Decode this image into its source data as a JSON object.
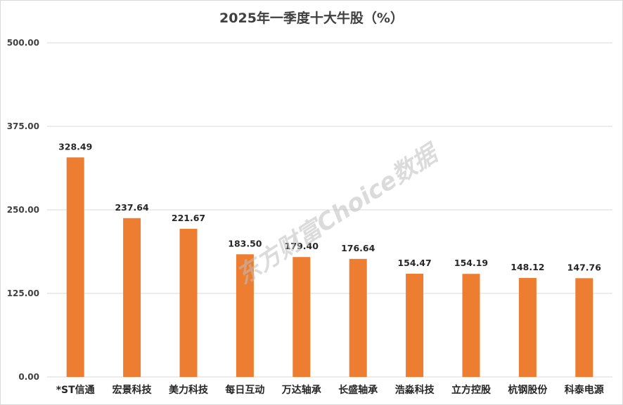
{
  "chart_data": {
    "type": "bar",
    "title": "2025年一季度十大牛股（%）",
    "categories": [
      "*ST信通",
      "宏景科技",
      "美力科技",
      "每日互动",
      "万达轴承",
      "长盛轴承",
      "浩淼科技",
      "立方控股",
      "杭钢股份",
      "科泰电源"
    ],
    "values": [
      328.49,
      237.64,
      221.67,
      183.5,
      179.4,
      176.64,
      154.47,
      154.19,
      148.12,
      147.76
    ],
    "value_labels": [
      "328.49",
      "237.64",
      "221.67",
      "183.50",
      "179.40",
      "176.64",
      "154.47",
      "154.19",
      "148.12",
      "147.76"
    ],
    "ylim": [
      0,
      500
    ],
    "yticks": [
      0,
      125,
      250,
      375,
      500
    ],
    "ytick_labels": [
      "0.00",
      "125.00",
      "250.00",
      "375.00",
      "500.00"
    ],
    "grid": true,
    "legend": "none",
    "bar_color": "#ed7d31",
    "watermark": "东方财富Choice数据"
  }
}
